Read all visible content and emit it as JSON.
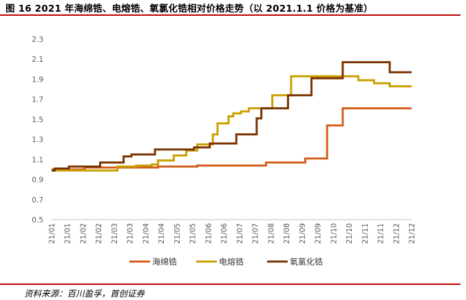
{
  "figure": {
    "title": "图 16 2021 年海绵锆、电熔锆、氧氯化锆相对价格走势（以 2021.1.1 价格为基准）",
    "source": "资料来源：百川盈孚，首创证券"
  },
  "chart_data": {
    "type": "line",
    "title": "",
    "xlabel": "",
    "ylabel": "",
    "ylim": [
      0.5,
      2.3
    ],
    "yticks": [
      "0.5",
      "0.7",
      "0.9",
      "1.1",
      "1.3",
      "1.5",
      "1.7",
      "1.9",
      "2.1",
      "2.3"
    ],
    "xticks": [
      "21/01",
      "21/01",
      "21/02",
      "21/02",
      "21/03",
      "21/03",
      "21/04",
      "21/04",
      "21/05",
      "21/05",
      "21/06",
      "21/06",
      "21/07",
      "21/07",
      "21/08",
      "21/08",
      "21/09",
      "21/09",
      "21/10",
      "21/10",
      "21/11",
      "21/11",
      "21/12",
      "21/12"
    ],
    "x_domain": [
      0,
      23
    ],
    "grid": false,
    "legend": "bottom",
    "series": [
      {
        "name": "海绵锆",
        "color": "#d35f1c",
        "points": [
          [
            0,
            1.0
          ],
          [
            2.1,
            1.0
          ],
          [
            2.1,
            1.02
          ],
          [
            6.8,
            1.02
          ],
          [
            6.8,
            1.03
          ],
          [
            9.3,
            1.03
          ],
          [
            9.3,
            1.04
          ],
          [
            13.7,
            1.04
          ],
          [
            13.7,
            1.07
          ],
          [
            16.2,
            1.07
          ],
          [
            16.2,
            1.11
          ],
          [
            17.6,
            1.11
          ],
          [
            17.6,
            1.44
          ],
          [
            18.6,
            1.44
          ],
          [
            18.6,
            1.61
          ],
          [
            23,
            1.61
          ]
        ]
      },
      {
        "name": "电熔锆",
        "color": "#c9a000",
        "points": [
          [
            0,
            0.99
          ],
          [
            4.2,
            0.99
          ],
          [
            4.2,
            1.03
          ],
          [
            5.4,
            1.03
          ],
          [
            5.4,
            1.04
          ],
          [
            6.4,
            1.04
          ],
          [
            6.4,
            1.05
          ],
          [
            6.8,
            1.05
          ],
          [
            6.8,
            1.09
          ],
          [
            7.8,
            1.09
          ],
          [
            7.8,
            1.14
          ],
          [
            8.6,
            1.14
          ],
          [
            8.6,
            1.19
          ],
          [
            9.3,
            1.19
          ],
          [
            9.3,
            1.25
          ],
          [
            10.3,
            1.25
          ],
          [
            10.3,
            1.35
          ],
          [
            10.6,
            1.35
          ],
          [
            10.6,
            1.46
          ],
          [
            11.3,
            1.46
          ],
          [
            11.3,
            1.53
          ],
          [
            11.6,
            1.53
          ],
          [
            11.6,
            1.56
          ],
          [
            12.1,
            1.56
          ],
          [
            12.1,
            1.58
          ],
          [
            12.6,
            1.58
          ],
          [
            12.6,
            1.61
          ],
          [
            14.1,
            1.61
          ],
          [
            14.1,
            1.74
          ],
          [
            15.3,
            1.74
          ],
          [
            15.3,
            1.93
          ],
          [
            19.6,
            1.93
          ],
          [
            19.6,
            1.89
          ],
          [
            20.6,
            1.89
          ],
          [
            20.6,
            1.86
          ],
          [
            21.6,
            1.86
          ],
          [
            21.6,
            1.83
          ],
          [
            23,
            1.83
          ]
        ]
      },
      {
        "name": "氧氯化锆",
        "color": "#7b3300",
        "points": [
          [
            0,
            0.99
          ],
          [
            0.2,
            0.99
          ],
          [
            0.2,
            1.01
          ],
          [
            1.1,
            1.01
          ],
          [
            1.1,
            1.03
          ],
          [
            3.1,
            1.03
          ],
          [
            3.1,
            1.07
          ],
          [
            4.6,
            1.07
          ],
          [
            4.6,
            1.13
          ],
          [
            5.1,
            1.13
          ],
          [
            5.1,
            1.15
          ],
          [
            6.6,
            1.15
          ],
          [
            6.6,
            1.2
          ],
          [
            9.1,
            1.2
          ],
          [
            9.1,
            1.22
          ],
          [
            10.1,
            1.22
          ],
          [
            10.1,
            1.26
          ],
          [
            11.8,
            1.26
          ],
          [
            11.8,
            1.35
          ],
          [
            13.1,
            1.35
          ],
          [
            13.1,
            1.51
          ],
          [
            13.4,
            1.51
          ],
          [
            13.4,
            1.61
          ],
          [
            15.1,
            1.61
          ],
          [
            15.1,
            1.74
          ],
          [
            16.6,
            1.74
          ],
          [
            16.6,
            1.91
          ],
          [
            18.6,
            1.91
          ],
          [
            18.6,
            2.07
          ],
          [
            21.6,
            2.07
          ],
          [
            21.6,
            1.97
          ],
          [
            23,
            1.97
          ]
        ]
      }
    ]
  }
}
